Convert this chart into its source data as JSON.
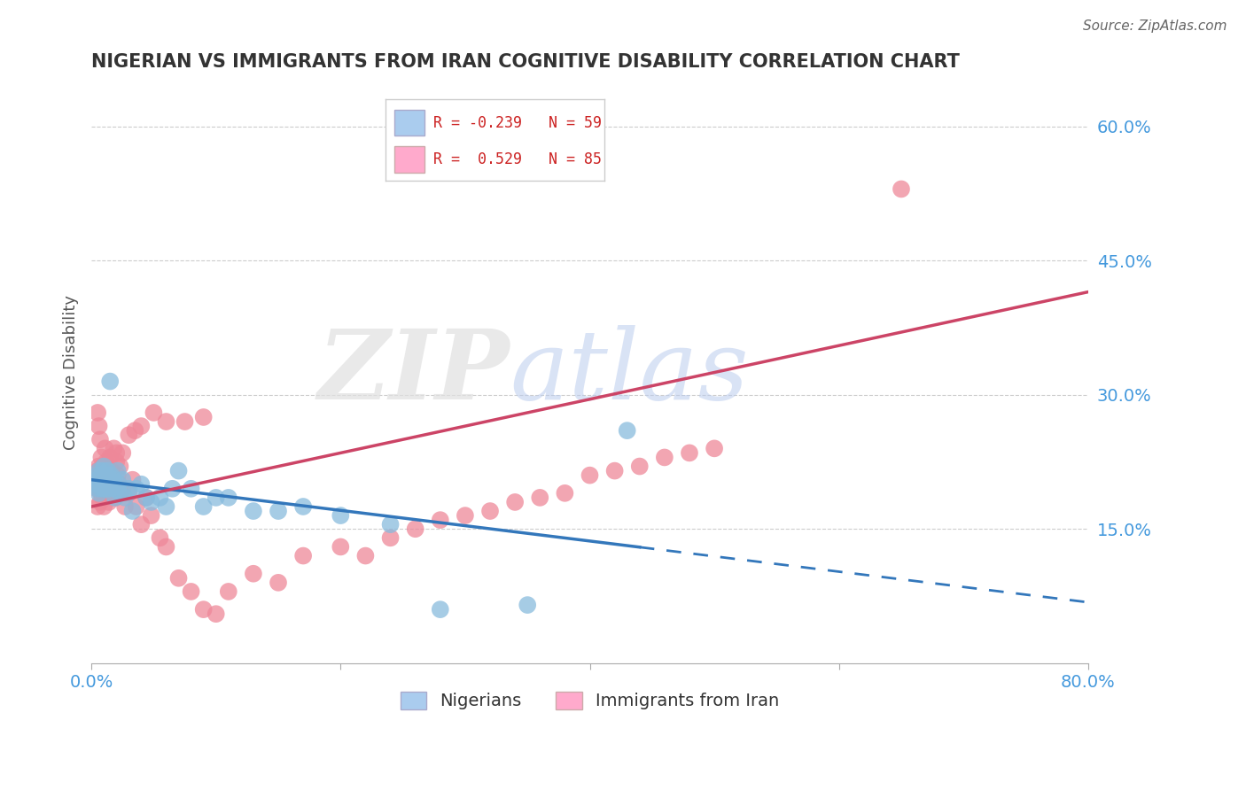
{
  "title": "NIGERIAN VS IMMIGRANTS FROM IRAN COGNITIVE DISABILITY CORRELATION CHART",
  "source": "Source: ZipAtlas.com",
  "ylabel": "Cognitive Disability",
  "xlim": [
    0.0,
    0.8
  ],
  "ylim": [
    0.0,
    0.65
  ],
  "xtick_positions": [
    0.0,
    0.2,
    0.4,
    0.6,
    0.8
  ],
  "xtick_labels": [
    "0.0%",
    "",
    "",
    "",
    "80.0%"
  ],
  "ytick_labels_right": [
    "15.0%",
    "30.0%",
    "45.0%",
    "60.0%"
  ],
  "ytick_positions_right": [
    0.15,
    0.3,
    0.45,
    0.6
  ],
  "watermark_zip": "ZIP",
  "watermark_atlas": "atlas",
  "series_blue": {
    "label": "Nigerians",
    "R": -0.239,
    "N": 59,
    "dot_color": "#88bbdd",
    "trend_color": "#3377bb",
    "trend_start_x": 0.0,
    "trend_start_y": 0.205,
    "trend_end_x": 0.8,
    "trend_end_y": 0.068,
    "trend_solid_end_x": 0.44
  },
  "series_pink": {
    "label": "Immigrants from Iran",
    "R": 0.529,
    "N": 85,
    "dot_color": "#ee8899",
    "trend_color": "#cc4466",
    "trend_start_x": 0.0,
    "trend_start_y": 0.175,
    "trend_end_x": 0.8,
    "trend_end_y": 0.415
  },
  "nigerian_x": [
    0.005,
    0.005,
    0.005,
    0.005,
    0.006,
    0.006,
    0.007,
    0.007,
    0.008,
    0.008,
    0.009,
    0.009,
    0.01,
    0.01,
    0.01,
    0.01,
    0.01,
    0.011,
    0.011,
    0.012,
    0.012,
    0.013,
    0.013,
    0.014,
    0.014,
    0.015,
    0.015,
    0.016,
    0.017,
    0.018,
    0.019,
    0.02,
    0.021,
    0.022,
    0.023,
    0.025,
    0.027,
    0.03,
    0.033,
    0.036,
    0.04,
    0.044,
    0.048,
    0.055,
    0.06,
    0.065,
    0.07,
    0.08,
    0.09,
    0.1,
    0.11,
    0.13,
    0.15,
    0.17,
    0.2,
    0.24,
    0.28,
    0.35,
    0.43
  ],
  "nigerian_y": [
    0.205,
    0.195,
    0.21,
    0.2,
    0.215,
    0.19,
    0.2,
    0.205,
    0.195,
    0.21,
    0.2,
    0.215,
    0.195,
    0.21,
    0.205,
    0.2,
    0.22,
    0.195,
    0.205,
    0.21,
    0.2,
    0.195,
    0.215,
    0.205,
    0.2,
    0.315,
    0.195,
    0.21,
    0.2,
    0.205,
    0.185,
    0.195,
    0.215,
    0.2,
    0.19,
    0.205,
    0.185,
    0.195,
    0.17,
    0.195,
    0.2,
    0.185,
    0.18,
    0.185,
    0.175,
    0.195,
    0.215,
    0.195,
    0.175,
    0.185,
    0.185,
    0.17,
    0.17,
    0.175,
    0.165,
    0.155,
    0.06,
    0.065,
    0.26
  ],
  "iran_x": [
    0.004,
    0.004,
    0.005,
    0.005,
    0.005,
    0.005,
    0.006,
    0.006,
    0.006,
    0.007,
    0.007,
    0.007,
    0.008,
    0.008,
    0.008,
    0.009,
    0.009,
    0.009,
    0.01,
    0.01,
    0.01,
    0.01,
    0.01,
    0.011,
    0.011,
    0.012,
    0.012,
    0.013,
    0.013,
    0.014,
    0.015,
    0.015,
    0.016,
    0.017,
    0.018,
    0.019,
    0.02,
    0.021,
    0.022,
    0.023,
    0.024,
    0.025,
    0.027,
    0.03,
    0.033,
    0.036,
    0.04,
    0.044,
    0.048,
    0.055,
    0.06,
    0.07,
    0.08,
    0.09,
    0.1,
    0.11,
    0.13,
    0.15,
    0.17,
    0.2,
    0.22,
    0.24,
    0.26,
    0.28,
    0.3,
    0.32,
    0.34,
    0.36,
    0.38,
    0.4,
    0.42,
    0.44,
    0.46,
    0.48,
    0.5,
    0.02,
    0.025,
    0.03,
    0.035,
    0.04,
    0.05,
    0.06,
    0.075,
    0.09,
    0.65
  ],
  "iran_y": [
    0.205,
    0.195,
    0.28,
    0.2,
    0.215,
    0.175,
    0.265,
    0.195,
    0.22,
    0.205,
    0.25,
    0.18,
    0.195,
    0.21,
    0.23,
    0.2,
    0.22,
    0.185,
    0.205,
    0.22,
    0.195,
    0.215,
    0.175,
    0.24,
    0.185,
    0.205,
    0.225,
    0.2,
    0.22,
    0.18,
    0.2,
    0.23,
    0.215,
    0.195,
    0.24,
    0.185,
    0.225,
    0.21,
    0.2,
    0.22,
    0.195,
    0.195,
    0.175,
    0.19,
    0.205,
    0.175,
    0.155,
    0.185,
    0.165,
    0.14,
    0.13,
    0.095,
    0.08,
    0.06,
    0.055,
    0.08,
    0.1,
    0.09,
    0.12,
    0.13,
    0.12,
    0.14,
    0.15,
    0.16,
    0.165,
    0.17,
    0.18,
    0.185,
    0.19,
    0.21,
    0.215,
    0.22,
    0.23,
    0.235,
    0.24,
    0.235,
    0.235,
    0.255,
    0.26,
    0.265,
    0.28,
    0.27,
    0.27,
    0.275,
    0.53
  ],
  "background_color": "#ffffff",
  "grid_color": "#cccccc",
  "title_color": "#333333",
  "right_tick_color": "#4499dd",
  "legend_box_color_blue": "#aaccee",
  "legend_box_color_pink": "#ffaacc"
}
